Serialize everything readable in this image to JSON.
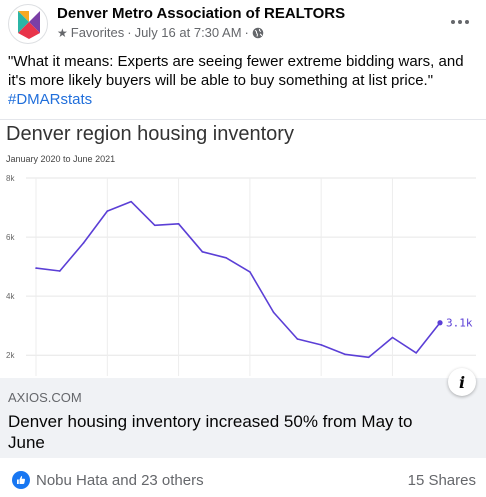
{
  "post": {
    "page_name": "Denver Metro Association of REALTORS",
    "audience_label": "Favorites",
    "separator": "·",
    "date": "July 16 at 7:30 AM",
    "text": "\"What it means: Experts are seeing fewer extreme bidding wars, and it's more likely buyers will be able to buy something at list price.\"",
    "hashtag": "#DMARstats"
  },
  "link_card": {
    "domain": "AXIOS.COM",
    "title": "Denver housing inventory increased 50% from May to June"
  },
  "reactions": {
    "reactors": "Nobu Hata and 23 others",
    "shares": "15 Shares"
  },
  "icons": {
    "avatar": "dmar-logo-icon",
    "audience": "star-icon",
    "privacy": "globe-icon",
    "more": "more-options-icon",
    "info": "info-icon",
    "like": "like-icon"
  },
  "colors": {
    "line": "#5b3fd6",
    "link": "#216fdb",
    "like": "#1877f2",
    "card_bg": "#f0f2f5"
  },
  "chart_data": {
    "type": "line",
    "title": "Denver region housing inventory",
    "subtitle": "January 2020 to June 2021",
    "ylim": [
      1500,
      8000
    ],
    "yticks": [
      2000,
      4000,
      6000,
      8000
    ],
    "ytick_labels": [
      "2k",
      "4k",
      "6k",
      "8k"
    ],
    "xlabel": "",
    "ylabel": "",
    "grid": true,
    "end_label": "3.1k",
    "x": [
      "2020-01",
      "2020-02",
      "2020-03",
      "2020-04",
      "2020-05",
      "2020-06",
      "2020-07",
      "2020-08",
      "2020-09",
      "2020-10",
      "2020-11",
      "2020-12",
      "2021-01",
      "2021-02",
      "2021-03",
      "2021-04",
      "2021-05",
      "2021-06"
    ],
    "values": [
      4950,
      4850,
      5800,
      6880,
      7200,
      6400,
      6450,
      5500,
      5300,
      4820,
      3450,
      2550,
      2350,
      2030,
      1930,
      2600,
      2080,
      3100
    ]
  }
}
